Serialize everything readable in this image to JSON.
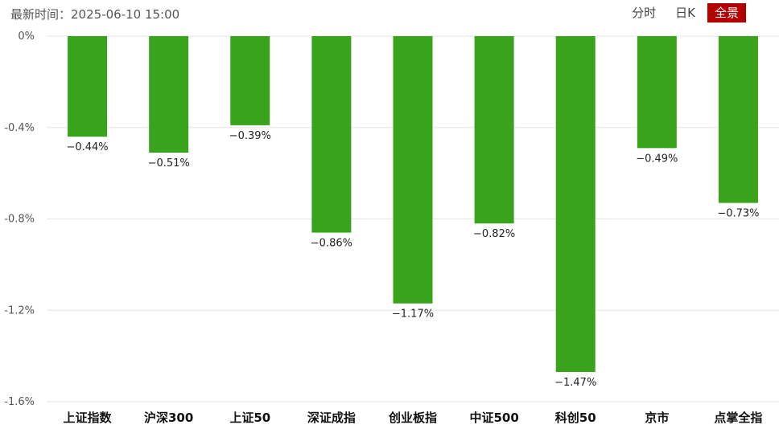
{
  "header": {
    "timestamp_label": "最新时间：",
    "timestamp_value": "2025-06-10 15:00",
    "tabs": [
      "分时",
      "日K",
      "全景"
    ],
    "active_tab": 2
  },
  "colors": {
    "bar": "#3aa31c",
    "active_tab": "#b30000",
    "grid": "#e6e6e6",
    "axis_text": "#555555",
    "label_text": "#222222"
  },
  "chart_data": {
    "type": "bar",
    "categories": [
      "上证指数",
      "沪深300",
      "上证50",
      "深证成指",
      "创业板指",
      "中证500",
      "科创50",
      "京市",
      "点掌全指"
    ],
    "values": [
      -0.44,
      -0.51,
      -0.39,
      -0.86,
      -1.17,
      -0.82,
      -1.47,
      -0.49,
      -0.73
    ],
    "value_labels": [
      "−0.44%",
      "−0.51%",
      "−0.39%",
      "−0.86%",
      "−1.17%",
      "−0.82%",
      "−1.47%",
      "−0.49%",
      "−0.73%"
    ],
    "yticks": [
      0,
      -0.4,
      -0.8,
      -1.2,
      -1.6
    ],
    "ytick_labels": [
      "0%",
      "-0.4%",
      "-0.8%",
      "-1.2%",
      "-1.6%"
    ],
    "ylim": [
      -1.6,
      0
    ],
    "grid": true,
    "legend": "none"
  }
}
